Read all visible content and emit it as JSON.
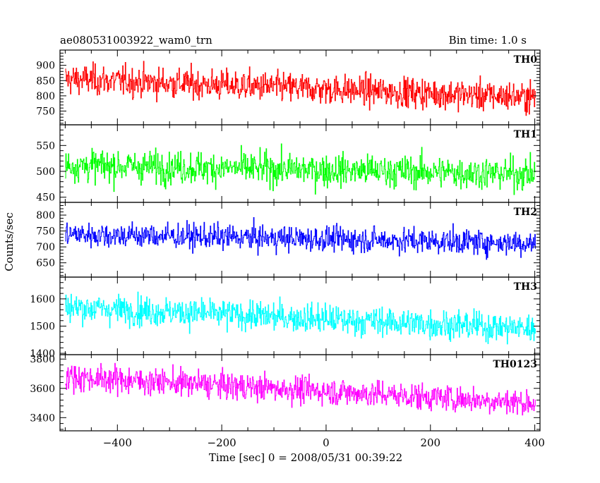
{
  "chart_data": {
    "type": "line",
    "title": "ae080531003922_wam0_trn",
    "subtitle": "Bin time: 1.0 s",
    "xlabel": "Time [sec] 0 = 2008/05/31 00:39:22",
    "ylabel": "Counts/sec",
    "xlim": [
      -510,
      410
    ],
    "x_ticks": [
      -400,
      -200,
      0,
      200,
      400
    ],
    "x_tick_labels": [
      "−400",
      "−200",
      "0",
      "200",
      "400"
    ],
    "x_start": -500,
    "x_end": 402,
    "x_step": 1,
    "grid": false,
    "legend": "none",
    "panels": [
      {
        "name": "TH0",
        "color": "#ff0000",
        "ylim": [
          705,
          950
        ],
        "y_ticks": [
          750,
          800,
          850,
          900
        ],
        "y_tick_labels": [
          "750",
          "800",
          "850",
          "900"
        ],
        "start_mean": 855,
        "end_mean": 795,
        "spread": 35
      },
      {
        "name": "TH1",
        "color": "#00ff00",
        "ylim": [
          440,
          590
        ],
        "y_ticks": [
          450,
          500,
          550
        ],
        "y_tick_labels": [
          "450",
          "500",
          "550"
        ],
        "start_mean": 512,
        "end_mean": 495,
        "spread": 22
      },
      {
        "name": "TH2",
        "color": "#0000ff",
        "ylim": [
          605,
          840
        ],
        "y_ticks": [
          650,
          700,
          750,
          800
        ],
        "y_tick_labels": [
          "650",
          "700",
          "750",
          "800"
        ],
        "start_mean": 740,
        "end_mean": 712,
        "spread": 28
      },
      {
        "name": "TH3",
        "color": "#00ffff",
        "ylim": [
          1395,
          1680
        ],
        "y_ticks": [
          1400,
          1500,
          1600
        ],
        "y_tick_labels": [
          "1400",
          "1500",
          "1600"
        ],
        "start_mean": 1570,
        "end_mean": 1490,
        "spread": 38
      },
      {
        "name": "TH0123",
        "color": "#ff00ff",
        "ylim": [
          3310,
          3830
        ],
        "y_ticks": [
          3400,
          3600,
          3800
        ],
        "y_tick_labels": [
          "3400",
          "3600",
          "3800"
        ],
        "start_mean": 3680,
        "end_mean": 3500,
        "spread": 65
      }
    ]
  }
}
